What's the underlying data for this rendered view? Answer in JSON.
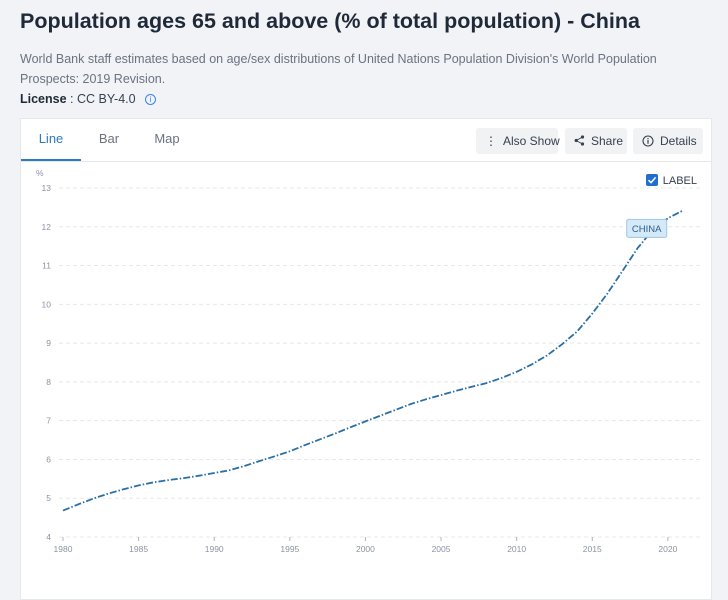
{
  "page": {
    "title": "Population ages 65 and above (% of total population) - China",
    "description": "World Bank staff estimates based on age/sex distributions of United Nations Population Division's World Population Prospects: 2019 Revision.",
    "license_label": "License",
    "license_value": ": CC BY-4.0"
  },
  "tabs": [
    {
      "label": "Line",
      "active": true
    },
    {
      "label": "Bar",
      "active": false
    },
    {
      "label": "Map",
      "active": false
    }
  ],
  "toolbar": {
    "also_show": "Also Show",
    "share": "Share",
    "details": "Details"
  },
  "legend": {
    "label_toggle": "LABEL",
    "checked": true
  },
  "colors": {
    "accent": "#2b7bbf",
    "line": "#2a6fa6",
    "series_label_bg": "#d6e9f7"
  },
  "chart_data": {
    "type": "line",
    "ylabel": "%",
    "xlabel": "",
    "ylim": [
      4,
      13
    ],
    "xlim": [
      1980,
      2021
    ],
    "yticks": [
      4,
      5,
      6,
      7,
      8,
      9,
      10,
      11,
      12,
      13
    ],
    "xticks": [
      1980,
      1985,
      1990,
      1995,
      2000,
      2005,
      2010,
      2015,
      2020
    ],
    "grid": true,
    "series": [
      {
        "name": "CHINA",
        "x": [
          1980,
          1981,
          1982,
          1983,
          1984,
          1985,
          1986,
          1987,
          1988,
          1989,
          1990,
          1991,
          1992,
          1993,
          1994,
          1995,
          1996,
          1997,
          1998,
          1999,
          2000,
          2001,
          2002,
          2003,
          2004,
          2005,
          2006,
          2007,
          2008,
          2009,
          2010,
          2011,
          2012,
          2013,
          2014,
          2015,
          2016,
          2017,
          2018,
          2019,
          2020,
          2021
        ],
        "values": [
          4.68,
          4.84,
          4.99,
          5.12,
          5.23,
          5.33,
          5.41,
          5.47,
          5.52,
          5.58,
          5.65,
          5.72,
          5.83,
          5.96,
          6.08,
          6.21,
          6.37,
          6.52,
          6.67,
          6.83,
          6.98,
          7.13,
          7.28,
          7.43,
          7.55,
          7.66,
          7.77,
          7.87,
          7.97,
          8.1,
          8.26,
          8.45,
          8.68,
          8.97,
          9.3,
          9.76,
          10.28,
          10.86,
          11.45,
          11.92,
          12.22,
          12.42
        ]
      }
    ]
  }
}
